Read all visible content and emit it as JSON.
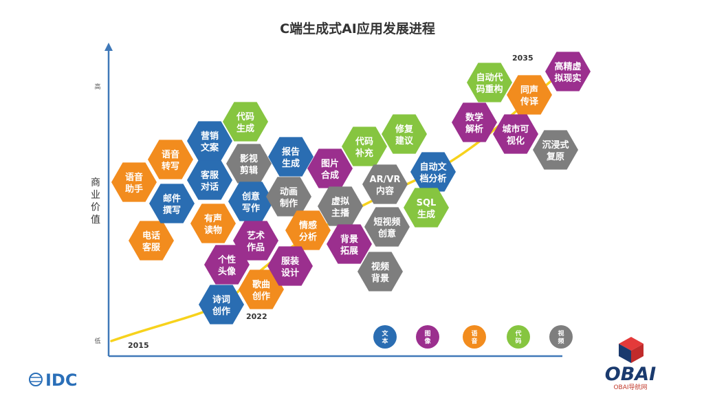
{
  "title": "C端生成式AI应用发展进程",
  "y_axis": {
    "label": "商业价值",
    "high": "高",
    "low": "低"
  },
  "years": [
    {
      "id": "y2015",
      "label": "2015"
    },
    {
      "id": "y2022",
      "label": "2022"
    },
    {
      "id": "y2035",
      "label": "2035"
    }
  ],
  "colors": {
    "文本": "#2a6db2",
    "图像": "#9b2f8e",
    "语音": "#f28c1e",
    "代码": "#86c540",
    "视频": "#7e7e7e",
    "curve": "#f7d21c",
    "axis": "#3f78b8"
  },
  "hexagons": [
    {
      "name": "hex-yuyin-zhushou",
      "cat": "语音",
      "lines": [
        "语音",
        "助手"
      ]
    },
    {
      "name": "hex-yuyin-zhuanxie",
      "cat": "语音",
      "lines": [
        "语音",
        "转写"
      ]
    },
    {
      "name": "hex-dianhua-kefu",
      "cat": "语音",
      "lines": [
        "电话",
        "客服"
      ]
    },
    {
      "name": "hex-youjian-zhuanxie",
      "cat": "文本",
      "lines": [
        "邮件",
        "撰写"
      ]
    },
    {
      "name": "hex-yingxiao-wenan",
      "cat": "文本",
      "lines": [
        "营销",
        "文案"
      ]
    },
    {
      "name": "hex-kefu-duihua",
      "cat": "文本",
      "lines": [
        "客服",
        "对话"
      ]
    },
    {
      "name": "hex-yousheng-duwu",
      "cat": "语音",
      "lines": [
        "有声",
        "读物"
      ]
    },
    {
      "name": "hex-daima-shengcheng",
      "cat": "代码",
      "lines": [
        "代码",
        "生成"
      ]
    },
    {
      "name": "hex-yingshi-jianji",
      "cat": "视频",
      "lines": [
        "影视",
        "剪辑"
      ]
    },
    {
      "name": "hex-chuangyi-xiezuo",
      "cat": "文本",
      "lines": [
        "创意",
        "写作"
      ]
    },
    {
      "name": "hex-yishu-zuopin",
      "cat": "图像",
      "lines": [
        "艺术",
        "作品"
      ]
    },
    {
      "name": "hex-gexing-touxiang",
      "cat": "图像",
      "lines": [
        "个性",
        "头像"
      ]
    },
    {
      "name": "hex-shici-chuangzuo",
      "cat": "文本",
      "lines": [
        "诗词",
        "创作"
      ]
    },
    {
      "name": "hex-gequ-chuangzuo",
      "cat": "语音",
      "lines": [
        "歌曲",
        "创作"
      ]
    },
    {
      "name": "hex-baogao-shengcheng",
      "cat": "文本",
      "lines": [
        "报告",
        "生成"
      ]
    },
    {
      "name": "hex-donghua-zhizuo",
      "cat": "视频",
      "lines": [
        "动画",
        "制作"
      ]
    },
    {
      "name": "hex-qinggan-fenxi",
      "cat": "语音",
      "lines": [
        "情感",
        "分析"
      ]
    },
    {
      "name": "hex-fuzhuang-sheji",
      "cat": "图像",
      "lines": [
        "服装",
        "设计"
      ]
    },
    {
      "name": "hex-tupian-hecheng",
      "cat": "图像",
      "lines": [
        "图片",
        "合成"
      ]
    },
    {
      "name": "hex-xuni-zhubo",
      "cat": "视频",
      "lines": [
        "虚拟",
        "主播"
      ]
    },
    {
      "name": "hex-beijing-tuozhan",
      "cat": "图像",
      "lines": [
        "背景",
        "拓展"
      ]
    },
    {
      "name": "hex-daima-buchong",
      "cat": "代码",
      "lines": [
        "代码",
        "补充"
      ]
    },
    {
      "name": "hex-arvr-neirong",
      "cat": "视频",
      "lines": [
        "AR/VR",
        "内容"
      ]
    },
    {
      "name": "hex-duanshipin-chuangyi",
      "cat": "视频",
      "lines": [
        "短视频",
        "创意"
      ]
    },
    {
      "name": "hex-shipin-beijing",
      "cat": "视频",
      "lines": [
        "视频",
        "背景"
      ]
    },
    {
      "name": "hex-xiufu-jianyi",
      "cat": "代码",
      "lines": [
        "修复",
        "建议"
      ]
    },
    {
      "name": "hex-zidong-wendang-fenxi",
      "cat": "文本",
      "lines": [
        "自动文",
        "档分析"
      ]
    },
    {
      "name": "hex-sql-shengcheng",
      "cat": "代码",
      "lines": [
        "SQL",
        "生成"
      ]
    },
    {
      "name": "hex-shuxue-jiexi",
      "cat": "图像",
      "lines": [
        "数学",
        "解析"
      ]
    },
    {
      "name": "hex-zidong-daima-chonggou",
      "cat": "代码",
      "lines": [
        "自动代",
        "码重构"
      ]
    },
    {
      "name": "hex-tongsheng-chuanyi",
      "cat": "语音",
      "lines": [
        "同声",
        "传译"
      ]
    },
    {
      "name": "hex-chengshi-keshihua",
      "cat": "图像",
      "lines": [
        "城市可",
        "视化"
      ]
    },
    {
      "name": "hex-gaojingdu-xuni-xianshi",
      "cat": "图像",
      "lines": [
        "高精虚",
        "拟现实"
      ]
    },
    {
      "name": "hex-chenjinshi-fuyuan",
      "cat": "视频",
      "lines": [
        "沉浸式",
        "复原"
      ]
    }
  ],
  "legend": [
    {
      "name": "legend-text",
      "cat": "文本",
      "lines": [
        "文",
        "本"
      ]
    },
    {
      "name": "legend-image",
      "cat": "图像",
      "lines": [
        "图",
        "像"
      ]
    },
    {
      "name": "legend-voice",
      "cat": "语音",
      "lines": [
        "语",
        "音"
      ]
    },
    {
      "name": "legend-code",
      "cat": "代码",
      "lines": [
        "代",
        "码"
      ]
    },
    {
      "name": "legend-video",
      "cat": "视频",
      "lines": [
        "视",
        "频"
      ]
    }
  ],
  "footer": {
    "idc": "IDC",
    "obai": "OBAI",
    "obai_sub": "OBAI导航网"
  }
}
